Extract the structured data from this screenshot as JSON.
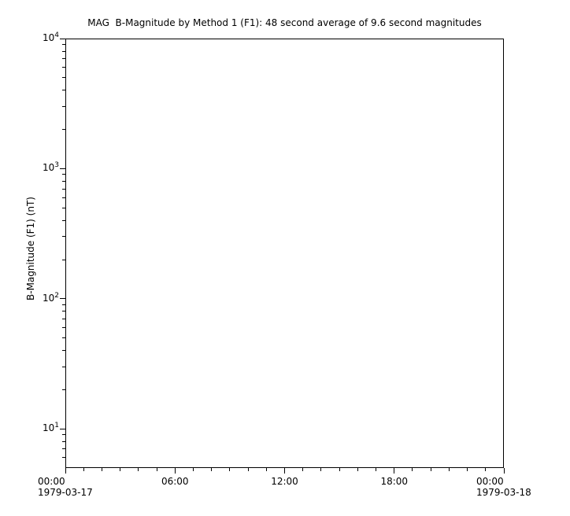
{
  "colors": {
    "background": "#ffffff",
    "axis": "#000000",
    "text": "#000000"
  },
  "chart_data": {
    "type": "line",
    "title": "MAG  B-Magnitude by Method 1 (F1): 48 second average of 9.6 second magnitudes",
    "xlabel": "",
    "ylabel": "B-Magnitude (F1) (nT)",
    "grid": false,
    "legend": false,
    "frame": "box",
    "series": [],
    "y_axis": {
      "scale": "log",
      "range": [
        5,
        10000
      ],
      "tick_label_base": "10",
      "major_tick_exponents": [
        4,
        3,
        2,
        1
      ],
      "minor_tick_multiples": [
        2,
        3,
        4,
        5,
        6,
        7,
        8,
        9
      ]
    },
    "x_axis": {
      "scale": "time",
      "range_hours": [
        0,
        24
      ],
      "minor_tick_interval_hours": 1,
      "major_ticks": [
        {
          "hour": 0,
          "label": "00:00",
          "date": "1979-03-17"
        },
        {
          "hour": 6,
          "label": "06:00"
        },
        {
          "hour": 12,
          "label": "12:00"
        },
        {
          "hour": 18,
          "label": "18:00"
        },
        {
          "hour": 24,
          "label": "00:00",
          "date": "1979-03-18"
        }
      ]
    }
  }
}
